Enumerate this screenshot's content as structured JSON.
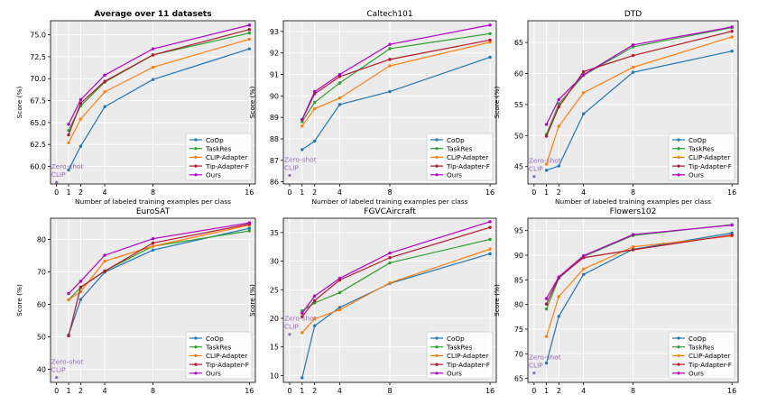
{
  "colors": {
    "CoOp": "#1f77b4",
    "TaskRes": "#2ca02c",
    "CLIP-Adapter": "#ff7f0e",
    "Tip-Adapter-F": "#b2182b",
    "Ours": "#b400c8",
    "zeroshot": "#9467bd",
    "panel_bg": "#ebebeb",
    "grid": "#ffffff"
  },
  "zeroshot_label": [
    "Zero-shot",
    "CLIP"
  ],
  "chart_data": [
    {
      "type": "line",
      "title": "Average over 11 datasets",
      "title_bold": true,
      "xlabel": "Number of labeled training examples per class",
      "ylabel": "Score (%)",
      "x_ticks": [
        0,
        1,
        2,
        4,
        8,
        16
      ],
      "y_ticks": [
        60.0,
        62.5,
        65.0,
        67.5,
        70.0,
        72.5,
        75.0
      ],
      "y_tick_labels": [
        "60.0",
        "62.5",
        "65.0",
        "67.5",
        "70.0",
        "72.5",
        "75.0"
      ],
      "ylim": [
        58.0,
        76.6
      ],
      "x": [
        1,
        2,
        4,
        8,
        16
      ],
      "zeroshot": 58.2,
      "legend": "lower-right",
      "series": [
        {
          "name": "CoOp",
          "values": [
            59.6,
            62.3,
            66.8,
            69.9,
            73.4
          ]
        },
        {
          "name": "TaskRes",
          "values": [
            64.1,
            66.9,
            69.6,
            72.7,
            75.2
          ]
        },
        {
          "name": "CLIP-Adapter",
          "values": [
            62.7,
            65.4,
            68.5,
            71.3,
            74.5
          ]
        },
        {
          "name": "Tip-Adapter-F",
          "values": [
            63.6,
            67.2,
            69.7,
            72.7,
            75.6
          ]
        },
        {
          "name": "Ours",
          "values": [
            64.8,
            67.6,
            70.4,
            73.4,
            76.1
          ]
        }
      ]
    },
    {
      "type": "line",
      "title": "Caltech101",
      "title_bold": false,
      "xlabel": "Number of labeled training examples per class",
      "ylabel": "Score (%)",
      "x_ticks": [
        0,
        1,
        2,
        4,
        8,
        16
      ],
      "y_ticks": [
        86,
        87,
        88,
        89,
        90,
        91,
        92,
        93
      ],
      "y_tick_labels": [
        "86",
        "87",
        "88",
        "89",
        "90",
        "91",
        "92",
        "93"
      ],
      "ylim": [
        85.9,
        93.5
      ],
      "x": [
        1,
        2,
        4,
        8,
        16
      ],
      "zeroshot": 86.3,
      "legend": "lower-right",
      "series": [
        {
          "name": "CoOp",
          "values": [
            87.5,
            87.9,
            89.6,
            90.2,
            91.8
          ]
        },
        {
          "name": "TaskRes",
          "values": [
            88.8,
            89.7,
            90.6,
            92.2,
            92.9
          ]
        },
        {
          "name": "CLIP-Adapter",
          "values": [
            88.6,
            89.4,
            89.9,
            91.4,
            92.5
          ]
        },
        {
          "name": "Tip-Adapter-F",
          "values": [
            88.9,
            90.1,
            90.9,
            91.7,
            92.6
          ]
        },
        {
          "name": "Ours",
          "values": [
            88.9,
            90.2,
            91.0,
            92.4,
            93.3
          ]
        }
      ]
    },
    {
      "type": "line",
      "title": "DTD",
      "title_bold": false,
      "xlabel": "Number of labeled training examples per class",
      "ylabel": "Score (%)",
      "x_ticks": [
        0,
        1,
        2,
        4,
        8,
        16
      ],
      "y_ticks": [
        45,
        50,
        55,
        60,
        65
      ],
      "y_tick_labels": [
        "45",
        "50",
        "55",
        "60",
        "65"
      ],
      "ylim": [
        42.2,
        68.5
      ],
      "x": [
        1,
        2,
        4,
        8,
        16
      ],
      "zeroshot": 43.4,
      "legend": "lower-right",
      "series": [
        {
          "name": "CoOp",
          "values": [
            44.4,
            45.1,
            53.5,
            60.2,
            63.6
          ]
        },
        {
          "name": "TaskRes",
          "values": [
            50.2,
            55.1,
            59.7,
            64.3,
            67.4
          ]
        },
        {
          "name": "CLIP-Adapter",
          "values": [
            45.4,
            51.5,
            56.9,
            61.0,
            65.9
          ]
        },
        {
          "name": "Tip-Adapter-F",
          "values": [
            49.9,
            54.6,
            60.3,
            62.9,
            66.8
          ]
        },
        {
          "name": "Ours",
          "values": [
            51.8,
            55.8,
            59.8,
            64.6,
            67.5
          ]
        }
      ]
    },
    {
      "type": "line",
      "title": "EuroSAT",
      "title_bold": false,
      "xlabel": "Number of labeled training examples per class",
      "ylabel": "Score (%)",
      "x_ticks": [
        0,
        1,
        2,
        4,
        8,
        16
      ],
      "y_ticks": [
        40,
        50,
        60,
        70,
        80
      ],
      "y_tick_labels": [
        "40",
        "50",
        "60",
        "70",
        "80"
      ],
      "ylim": [
        36.0,
        86.5
      ],
      "x": [
        1,
        2,
        4,
        8,
        16
      ],
      "zeroshot": 37.5,
      "legend": "lower-right",
      "series": [
        {
          "name": "CoOp",
          "values": [
            50.6,
            61.5,
            69.9,
            76.7,
            83.4
          ]
        },
        {
          "name": "TaskRes",
          "values": [
            61.4,
            65.2,
            70.3,
            77.9,
            82.6
          ]
        },
        {
          "name": "CLIP-Adapter",
          "values": [
            61.4,
            63.9,
            73.3,
            77.9,
            84.4
          ]
        },
        {
          "name": "Tip-Adapter-F",
          "values": [
            50.3,
            65.3,
            70.2,
            78.9,
            84.7
          ]
        },
        {
          "name": "Ours",
          "values": [
            63.3,
            67.1,
            75.1,
            80.2,
            85.1
          ]
        }
      ]
    },
    {
      "type": "line",
      "title": "FGVCAircraft",
      "title_bold": false,
      "xlabel": "Number of labeled training examples per class",
      "ylabel": "Score (%)",
      "x_ticks": [
        0,
        1,
        2,
        4,
        8,
        16
      ],
      "y_ticks": [
        10,
        15,
        20,
        25,
        30,
        35
      ],
      "y_tick_labels": [
        "10",
        "15",
        "20",
        "25",
        "30",
        "35"
      ],
      "ylim": [
        8.8,
        37.5
      ],
      "x": [
        1,
        2,
        4,
        8,
        16
      ],
      "zeroshot": 17.2,
      "legend": "lower-right",
      "series": [
        {
          "name": "CoOp",
          "values": [
            9.6,
            18.7,
            21.9,
            26.1,
            31.3
          ]
        },
        {
          "name": "TaskRes",
          "values": [
            21.3,
            22.7,
            24.5,
            29.7,
            33.8
          ]
        },
        {
          "name": "CLIP-Adapter",
          "values": [
            17.5,
            19.9,
            21.5,
            26.2,
            32.1
          ]
        },
        {
          "name": "Tip-Adapter-F",
          "values": [
            20.3,
            23.1,
            26.7,
            30.6,
            35.9
          ]
        },
        {
          "name": "Ours",
          "values": [
            20.9,
            23.9,
            27.0,
            31.4,
            36.9
          ]
        }
      ]
    },
    {
      "type": "line",
      "title": "Flowers102",
      "title_bold": false,
      "xlabel": "Number of labeled training examples per class",
      "ylabel": "Score (%)",
      "x_ticks": [
        0,
        1,
        2,
        4,
        8,
        16
      ],
      "y_ticks": [
        65,
        70,
        75,
        80,
        85,
        90,
        95
      ],
      "y_tick_labels": [
        "65",
        "70",
        "75",
        "80",
        "85",
        "90",
        "95"
      ],
      "ylim": [
        64.2,
        97.5
      ],
      "x": [
        1,
        2,
        4,
        8,
        16
      ],
      "zeroshot": 66.1,
      "legend": "lower-right",
      "series": [
        {
          "name": "CoOp",
          "values": [
            68.1,
            77.6,
            86.1,
            91.2,
            94.5
          ]
        },
        {
          "name": "TaskRes",
          "values": [
            79.1,
            85.3,
            89.7,
            94.0,
            96.2
          ]
        },
        {
          "name": "CLIP-Adapter",
          "values": [
            73.5,
            81.6,
            87.2,
            91.7,
            93.9
          ]
        },
        {
          "name": "Tip-Adapter-F",
          "values": [
            80.1,
            85.5,
            89.5,
            91.1,
            94.1
          ]
        },
        {
          "name": "Ours",
          "values": [
            81.2,
            85.6,
            89.9,
            94.2,
            96.1
          ]
        }
      ]
    }
  ]
}
